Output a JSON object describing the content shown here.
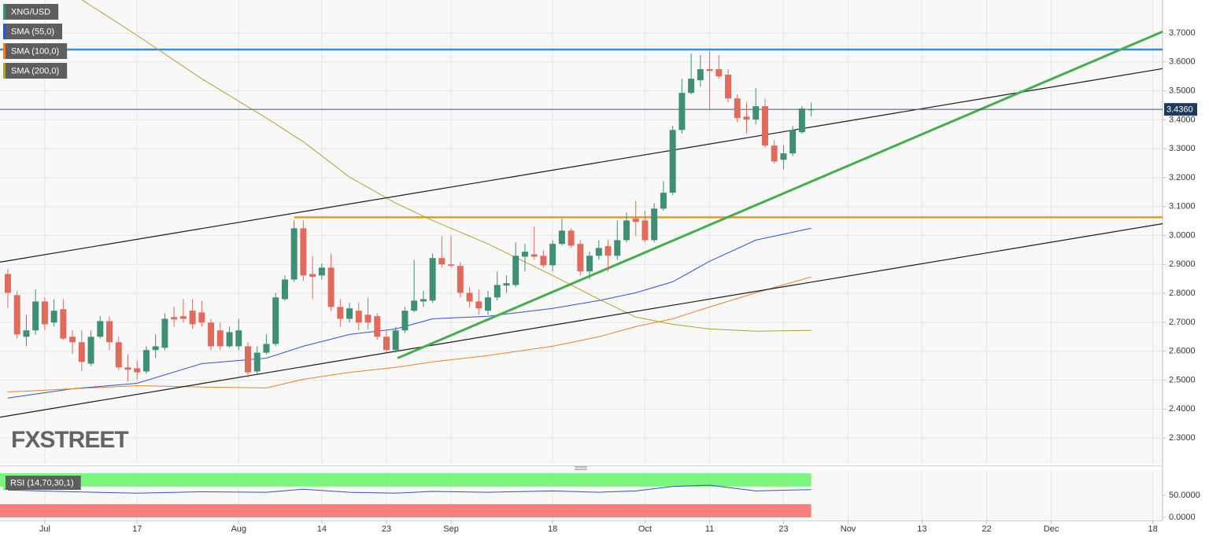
{
  "chart_data": [
    {
      "type": "candlestick",
      "xlim": [
        -0.85,
        125.05
      ],
      "ylim": [
        2.2105,
        3.8142
      ],
      "grid": true,
      "yticks": [
        {
          "value": 2.3,
          "label": "2.3000"
        },
        {
          "value": 2.4,
          "label": "2.4000"
        },
        {
          "value": 2.5,
          "label": "2.5000"
        },
        {
          "value": 2.6,
          "label": "2.6000"
        },
        {
          "value": 2.7,
          "label": "2.7000"
        },
        {
          "value": 2.8,
          "label": "2.8000"
        },
        {
          "value": 2.9,
          "label": "2.9000"
        },
        {
          "value": 3.0,
          "label": "3.0000"
        },
        {
          "value": 3.1,
          "label": "3.1000"
        },
        {
          "value": 3.2,
          "label": "3.2000"
        },
        {
          "value": 3.3,
          "label": "3.3000"
        },
        {
          "value": 3.4,
          "label": "3.4000"
        },
        {
          "value": 3.5,
          "label": "3.5000"
        },
        {
          "value": 3.6,
          "label": "3.6000"
        },
        {
          "value": 3.7,
          "label": "3.7000"
        }
      ],
      "xticks": [
        {
          "value": 4,
          "label": "Jul"
        },
        {
          "value": 14,
          "label": "17"
        },
        {
          "value": 25,
          "label": "Aug"
        },
        {
          "value": 34,
          "label": "14"
        },
        {
          "value": 41,
          "label": "23"
        },
        {
          "value": 48,
          "label": "Sep"
        },
        {
          "value": 59,
          "label": "18"
        },
        {
          "value": 69,
          "label": "Oct"
        },
        {
          "value": 76,
          "label": "11"
        },
        {
          "value": 84,
          "label": "23"
        },
        {
          "value": 91,
          "label": "Nov"
        },
        {
          "value": 99,
          "label": "13"
        },
        {
          "value": 106,
          "label": "22"
        },
        {
          "value": 113,
          "label": "Dec"
        },
        {
          "value": 124,
          "label": "18"
        }
      ],
      "series": [
        {
          "name": "XNG/USD",
          "color_up": "#3e8f73",
          "color_down": "#e06b5d",
          "open": [
            2.867,
            2.794,
            2.65,
            2.672,
            2.772,
            2.699,
            2.745,
            2.65,
            2.631,
            2.557,
            2.65,
            2.704,
            2.631,
            2.544,
            2.541,
            2.53,
            2.604,
            2.612,
            2.718,
            2.721,
            2.74,
            2.734,
            2.699,
            2.672,
            2.617,
            2.617,
            2.617,
            2.53,
            2.595,
            2.625,
            2.78,
            2.848,
            3.025,
            2.867,
            2.862,
            2.889,
            2.753,
            2.712,
            2.74,
            2.726,
            2.721,
            2.65,
            2.604,
            2.672,
            2.74,
            2.772,
            2.775,
            2.922,
            2.9,
            2.895,
            2.802,
            2.772,
            2.74,
            2.786,
            2.827,
            2.829,
            2.927,
            2.935,
            2.93,
            2.897,
            2.971,
            3.017,
            2.971,
            2.876,
            2.93,
            2.963,
            2.93,
            2.984,
            3.058,
            3.052,
            2.984,
            3.093,
            3.148,
            3.365,
            3.493,
            3.537,
            3.575,
            3.575,
            3.556,
            3.474,
            3.411,
            3.401,
            3.447,
            3.311,
            3.262,
            3.284,
            3.357,
            3.433
          ],
          "high": [
            2.884,
            2.808,
            2.726,
            2.813,
            2.786,
            2.78,
            2.78,
            2.672,
            2.672,
            2.672,
            2.721,
            2.721,
            2.65,
            2.59,
            2.568,
            2.617,
            2.658,
            2.731,
            2.753,
            2.78,
            2.78,
            2.775,
            2.712,
            2.699,
            2.685,
            2.712,
            2.631,
            2.617,
            2.658,
            2.802,
            2.862,
            3.052,
            3.052,
            2.93,
            2.903,
            2.938,
            2.78,
            2.767,
            2.767,
            2.786,
            2.731,
            2.672,
            2.685,
            2.753,
            2.916,
            2.808,
            2.938,
            2.998,
            2.998,
            2.908,
            2.821,
            2.813,
            2.808,
            2.876,
            2.862,
            2.976,
            2.971,
            3.031,
            2.949,
            2.984,
            3.058,
            3.025,
            2.984,
            2.944,
            2.984,
            2.984,
            3.052,
            3.08,
            3.12,
            3.085,
            3.112,
            3.188,
            3.379,
            3.542,
            3.629,
            3.624,
            3.637,
            3.624,
            3.575,
            3.488,
            3.46,
            3.509,
            3.474,
            3.33,
            3.311,
            3.379,
            3.447,
            3.46
          ],
          "low": [
            2.748,
            2.644,
            2.617,
            2.658,
            2.672,
            2.685,
            2.639,
            2.59,
            2.53,
            2.549,
            2.644,
            2.604,
            2.536,
            2.495,
            2.503,
            2.522,
            2.576,
            2.604,
            2.685,
            2.699,
            2.677,
            2.685,
            2.604,
            2.604,
            2.612,
            2.604,
            2.508,
            2.522,
            2.59,
            2.617,
            2.775,
            2.84,
            2.843,
            2.78,
            2.848,
            2.74,
            2.685,
            2.699,
            2.672,
            2.677,
            2.639,
            2.595,
            2.595,
            2.663,
            2.734,
            2.753,
            2.767,
            2.889,
            2.889,
            2.786,
            2.753,
            2.726,
            2.726,
            2.775,
            2.802,
            2.821,
            2.876,
            2.916,
            2.889,
            2.876,
            2.965,
            2.957,
            2.862,
            2.848,
            2.916,
            2.876,
            2.916,
            2.976,
            2.998,
            2.976,
            2.976,
            3.085,
            3.139,
            3.352,
            3.488,
            3.515,
            3.433,
            3.542,
            3.46,
            3.392,
            3.352,
            3.384,
            3.303,
            3.248,
            3.229,
            3.275,
            3.352,
            3.411
          ],
          "close": [
            2.802,
            2.658,
            2.672,
            2.772,
            2.693,
            2.74,
            2.644,
            2.631,
            2.563,
            2.65,
            2.704,
            2.631,
            2.544,
            2.536,
            2.527,
            2.604,
            2.617,
            2.712,
            2.71,
            2.712,
            2.693,
            2.699,
            2.617,
            2.617,
            2.666,
            2.672,
            2.527,
            2.595,
            2.625,
            2.786,
            2.848,
            3.025,
            2.862,
            2.857,
            2.889,
            2.753,
            2.712,
            2.748,
            2.699,
            2.699,
            2.65,
            2.604,
            2.672,
            2.74,
            2.775,
            2.78,
            2.922,
            2.9,
            2.895,
            2.802,
            2.772,
            2.748,
            2.786,
            2.829,
            2.835,
            2.93,
            2.944,
            2.927,
            2.897,
            2.971,
            3.017,
            2.965,
            2.876,
            2.93,
            2.957,
            2.93,
            2.984,
            3.052,
            3.047,
            2.984,
            3.093,
            3.148,
            3.365,
            3.493,
            3.542,
            3.575,
            3.569,
            3.55,
            3.474,
            3.406,
            3.401,
            3.447,
            3.311,
            3.256,
            3.284,
            3.365,
            3.439,
            3.436
          ]
        }
      ],
      "overlays": [
        {
          "name": "SMA (55,0)",
          "color": "#3250d4",
          "x": [
            0,
            7,
            14,
            21,
            28,
            32,
            37,
            42,
            46,
            52,
            59,
            64,
            68,
            72,
            76,
            81,
            87
          ],
          "values": [
            2.438,
            2.47,
            2.489,
            2.557,
            2.576,
            2.617,
            2.658,
            2.677,
            2.712,
            2.721,
            2.748,
            2.775,
            2.802,
            2.84,
            2.911,
            2.984,
            3.025
          ]
        },
        {
          "name": "SMA (100,0)",
          "color": "#e8802a",
          "x": [
            0,
            7,
            14,
            21,
            28,
            32,
            37,
            42,
            46,
            52,
            59,
            64,
            68,
            72,
            76,
            81,
            87
          ],
          "values": [
            2.459,
            2.47,
            2.481,
            2.476,
            2.473,
            2.503,
            2.527,
            2.544,
            2.563,
            2.585,
            2.617,
            2.65,
            2.685,
            2.712,
            2.753,
            2.802,
            2.857
          ]
        },
        {
          "name": "SMA (200,0)",
          "color": "#b3a22b",
          "x": [
            7,
            14,
            21,
            28,
            32,
            37,
            42,
            46,
            52,
            59,
            64,
            68,
            72,
            76,
            81,
            87
          ],
          "values": [
            3.836,
            3.692,
            3.542,
            3.406,
            3.324,
            3.202,
            3.112,
            3.052,
            2.971,
            2.862,
            2.78,
            2.718,
            2.693,
            2.677,
            2.669,
            2.672
          ]
        }
      ],
      "trend_lines": [
        {
          "color": "#1a1a1a",
          "x": [
            -0.85,
            125.05
          ],
          "values": [
            2.908,
            3.577
          ]
        },
        {
          "color": "#1a1a1a",
          "x": [
            -0.85,
            125.05
          ],
          "values": [
            2.372,
            3.041
          ]
        },
        {
          "color": "#46ad4b",
          "x": [
            42.2,
            125.05
          ],
          "values": [
            2.576,
            3.705
          ]
        }
      ],
      "levels": [
        {
          "value": 3.643,
          "color": "#2e8fe0",
          "x_from": -0.85
        },
        {
          "value": 3.063,
          "color": "#f5960c",
          "x_from": 31
        }
      ],
      "last_price": {
        "value": 3.436,
        "label": "3.4360",
        "color": "#1f3a5c"
      },
      "watermark": "FXSTREET"
    },
    {
      "type": "line",
      "title": "RSI (14,70,30,1)",
      "ylim": [
        0,
        100
      ],
      "yticks": [
        {
          "value": 50,
          "label": "50.0000"
        },
        {
          "value": 0,
          "label": "0.0000"
        }
      ],
      "bands": [
        {
          "from": 70,
          "to": 100,
          "color": "#7cf57c"
        },
        {
          "from": 0,
          "to": 30,
          "color": "#f97f7f"
        }
      ],
      "series": [
        {
          "color": "#3451d1",
          "x": [
            0,
            7,
            14,
            21,
            28,
            32,
            37,
            42,
            46,
            52,
            59,
            64,
            68,
            72,
            76,
            81,
            87
          ],
          "values": [
            62,
            58,
            55,
            58,
            57,
            64,
            57,
            55,
            59,
            57,
            60,
            57,
            60,
            70,
            73,
            60,
            63
          ]
        }
      ]
    }
  ]
}
